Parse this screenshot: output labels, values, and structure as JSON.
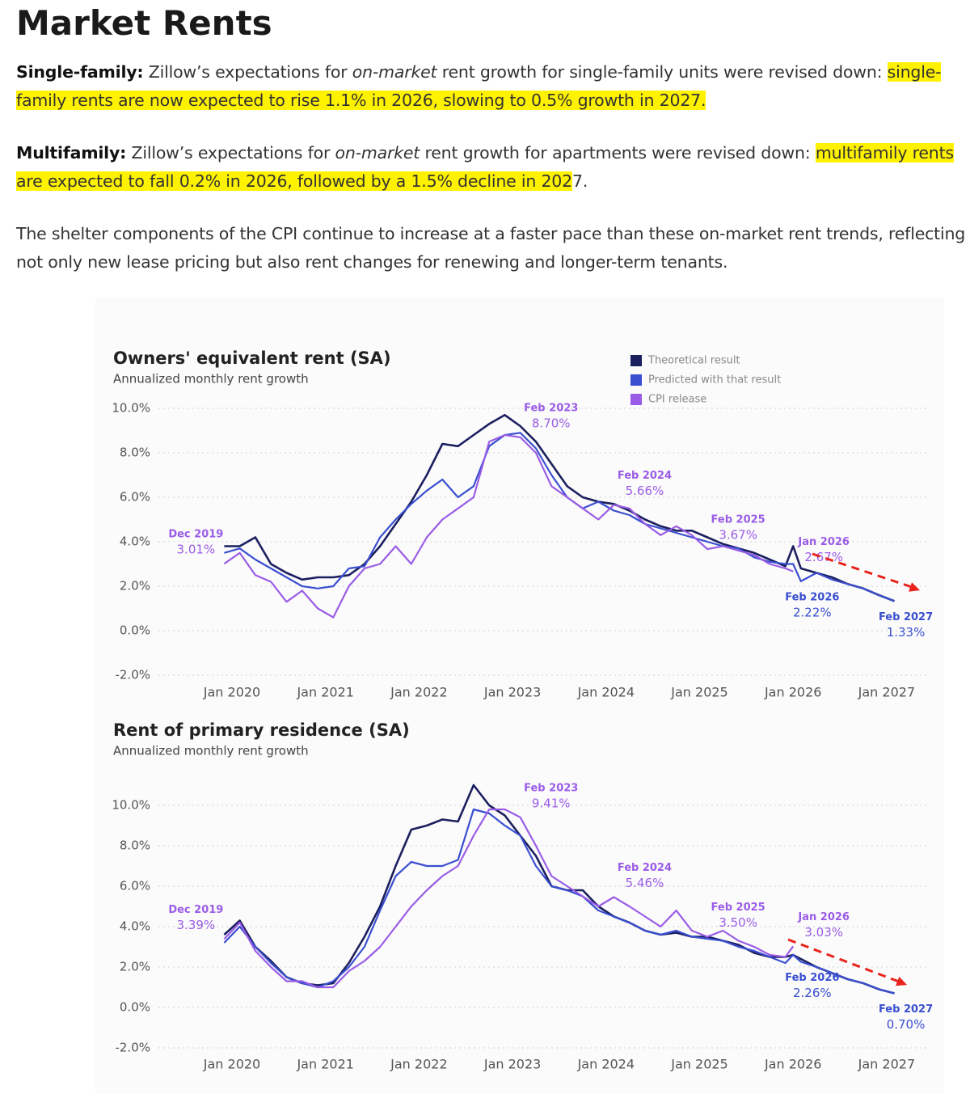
{
  "title": "Market Rents",
  "paragraphs": [
    [
      {
        "text": "Single-family:",
        "style": "bold"
      },
      {
        "text": " Zillow’s expectations for ",
        "style": "normal"
      },
      {
        "text": "on-market",
        "style": "italic"
      },
      {
        "text": " rent growth for single-family units were revised down: ",
        "style": "normal"
      },
      {
        "text": "single-family rents are now expected to rise 1.1% in 2026, slowing to 0.5% growth in 2027.",
        "style": "highlight"
      }
    ],
    [
      {
        "text": "Multifamily:",
        "style": "bold"
      },
      {
        "text": " Zillow’s expectations for ",
        "style": "normal"
      },
      {
        "text": "on-market",
        "style": "italic"
      },
      {
        "text": " rent growth for apartments were revised down: ",
        "style": "normal"
      },
      {
        "text": "multifamily rents are expected to fall 0.2% in 2026, followed by a 1.5% decline in 202",
        "style": "highlight"
      },
      {
        "text": "7.",
        "style": "normal"
      }
    ],
    [
      {
        "text": "The shelter components of the CPI continue to increase at a faster pace than these on-market rent trends, reflecting not only new lease pricing but also rent changes for renewing and longer-term tenants.",
        "style": "normal"
      }
    ]
  ],
  "chart_data": [
    {
      "type": "line",
      "title": "Owners' equivalent rent (SA)",
      "subtitle": "Annualized monthly rent growth",
      "x": [
        "2019-12",
        "2020-02",
        "2020-04",
        "2020-06",
        "2020-08",
        "2020-10",
        "2020-12",
        "2021-02",
        "2021-04",
        "2021-06",
        "2021-08",
        "2021-10",
        "2021-12",
        "2022-02",
        "2022-04",
        "2022-06",
        "2022-08",
        "2022-10",
        "2022-12",
        "2023-02",
        "2023-04",
        "2023-06",
        "2023-08",
        "2023-10",
        "2023-12",
        "2024-02",
        "2024-04",
        "2024-06",
        "2024-08",
        "2024-10",
        "2024-12",
        "2025-02",
        "2025-04",
        "2025-06",
        "2025-08",
        "2025-10",
        "2025-12",
        "2026-01",
        "2026-02",
        "2026-04",
        "2026-06",
        "2026-08",
        "2026-10",
        "2026-12",
        "2027-02"
      ],
      "series": [
        {
          "name": "Theoretical result",
          "color": "#1b1f5e",
          "values": [
            3.8,
            3.8,
            4.2,
            3.0,
            2.6,
            2.3,
            2.4,
            2.4,
            2.5,
            3.0,
            3.8,
            4.8,
            5.8,
            7.0,
            8.4,
            8.3,
            8.8,
            9.3,
            9.7,
            9.2,
            8.5,
            7.5,
            6.5,
            6.0,
            5.8,
            5.7,
            5.4,
            5.0,
            4.7,
            4.5,
            4.5,
            4.2,
            3.9,
            3.7,
            3.5,
            3.2,
            2.9,
            3.8,
            2.8,
            2.6,
            2.4,
            2.1,
            1.9,
            1.6,
            1.33
          ]
        },
        {
          "name": "Predicted with that result",
          "color": "#3a4fd0",
          "values": [
            3.5,
            3.7,
            3.2,
            2.8,
            2.4,
            2.0,
            1.9,
            2.0,
            2.8,
            2.9,
            4.2,
            5.0,
            5.7,
            6.3,
            6.8,
            6.0,
            6.5,
            8.3,
            8.8,
            8.9,
            8.2,
            7.0,
            6.0,
            5.5,
            5.8,
            5.4,
            5.2,
            4.8,
            4.6,
            4.4,
            4.2,
            4.0,
            3.8,
            3.7,
            3.3,
            3.1,
            3.0,
            3.0,
            2.22,
            2.6,
            2.3,
            2.1,
            1.9,
            1.6,
            1.33
          ]
        },
        {
          "name": "CPI release",
          "color": "#9a5ce6",
          "values": [
            3.01,
            3.5,
            2.5,
            2.2,
            1.3,
            1.8,
            1.0,
            0.6,
            2.0,
            2.8,
            3.0,
            3.8,
            3.0,
            4.2,
            5.0,
            5.5,
            6.0,
            8.5,
            8.8,
            8.7,
            8.0,
            6.5,
            6.0,
            5.5,
            5.0,
            5.66,
            5.5,
            4.8,
            4.3,
            4.7,
            4.3,
            3.67,
            3.8,
            3.6,
            3.4,
            3.0,
            2.8,
            2.67,
            null,
            null,
            null,
            null,
            null,
            null,
            null
          ]
        }
      ],
      "annotations": [
        {
          "label": "Dec 2019",
          "value_label": "3.01%",
          "x": "2019-12",
          "value": 3.01,
          "color": "#9a5ce6"
        },
        {
          "label": "Feb 2023",
          "value_label": "8.70%",
          "x": "2023-02",
          "value": 8.7,
          "color": "#9a5ce6"
        },
        {
          "label": "Feb 2024",
          "value_label": "5.66%",
          "x": "2024-02",
          "value": 5.66,
          "color": "#9a5ce6"
        },
        {
          "label": "Feb 2025",
          "value_label": "3.67%",
          "x": "2025-02",
          "value": 3.67,
          "color": "#9a5ce6"
        },
        {
          "label": "Jan 2026",
          "value_label": "2.67%",
          "x": "2026-01",
          "value": 2.67,
          "color": "#9a5ce6"
        },
        {
          "label": "Feb 2026",
          "value_label": "2.22%",
          "x": "2026-02",
          "value": 2.22,
          "color": "#3a4fd0"
        },
        {
          "label": "Feb 2027",
          "value_label": "1.33%",
          "x": "2027-02",
          "value": 1.33,
          "color": "#3a4fd0"
        }
      ],
      "ylim": [
        -2,
        10
      ],
      "yticks": [
        {
          "value": -2,
          "label": "-2.0%"
        },
        {
          "value": 0,
          "label": "0.0%"
        },
        {
          "value": 2,
          "label": "2.0%"
        },
        {
          "value": 4,
          "label": "4.0%"
        },
        {
          "value": 6,
          "label": "6.0%"
        },
        {
          "value": 8,
          "label": "8.0%"
        },
        {
          "value": 10,
          "label": "10.0%"
        }
      ],
      "xticks": [
        {
          "value": "2020-01",
          "label": "Jan 2020"
        },
        {
          "value": "2021-01",
          "label": "Jan 2021"
        },
        {
          "value": "2022-01",
          "label": "Jan 2022"
        },
        {
          "value": "2023-01",
          "label": "Jan 2023"
        },
        {
          "value": "2024-01",
          "label": "Jan 2024"
        },
        {
          "value": "2025-01",
          "label": "Jan 2025"
        },
        {
          "value": "2026-01",
          "label": "Jan 2026"
        },
        {
          "value": "2027-01",
          "label": "Jan 2027"
        }
      ],
      "grid": true,
      "legend": "top-right"
    },
    {
      "type": "line",
      "title": "Rent of primary residence (SA)",
      "subtitle": "Annualized monthly rent growth",
      "x": [
        "2019-12",
        "2020-02",
        "2020-04",
        "2020-06",
        "2020-08",
        "2020-10",
        "2020-12",
        "2021-02",
        "2021-04",
        "2021-06",
        "2021-08",
        "2021-10",
        "2021-12",
        "2022-02",
        "2022-04",
        "2022-06",
        "2022-08",
        "2022-10",
        "2022-12",
        "2023-02",
        "2023-04",
        "2023-06",
        "2023-08",
        "2023-10",
        "2023-12",
        "2024-02",
        "2024-04",
        "2024-06",
        "2024-08",
        "2024-10",
        "2024-12",
        "2025-02",
        "2025-04",
        "2025-06",
        "2025-08",
        "2025-10",
        "2025-12",
        "2026-01",
        "2026-02",
        "2026-04",
        "2026-06",
        "2026-08",
        "2026-10",
        "2026-12",
        "2027-02"
      ],
      "series": [
        {
          "name": "Theoretical result",
          "color": "#1b1f5e",
          "values": [
            3.6,
            4.3,
            3.0,
            2.3,
            1.5,
            1.2,
            1.1,
            1.2,
            2.2,
            3.5,
            5.0,
            7.0,
            8.8,
            9.0,
            9.3,
            9.2,
            11.0,
            10.0,
            9.5,
            8.5,
            7.5,
            6.0,
            5.8,
            5.8,
            5.0,
            4.5,
            4.2,
            3.8,
            3.6,
            3.7,
            3.5,
            3.5,
            3.3,
            3.1,
            2.7,
            2.5,
            2.5,
            2.6,
            2.4,
            2.0,
            1.7,
            1.4,
            1.2,
            0.9,
            0.7
          ]
        },
        {
          "name": "Predicted with that result",
          "color": "#3a4fd0",
          "values": [
            3.2,
            4.0,
            3.0,
            2.2,
            1.5,
            1.2,
            1.0,
            1.3,
            2.0,
            3.0,
            4.8,
            6.5,
            7.2,
            7.0,
            7.0,
            7.3,
            9.8,
            9.6,
            9.0,
            8.5,
            7.0,
            6.0,
            5.8,
            5.5,
            4.8,
            4.5,
            4.2,
            3.8,
            3.6,
            3.8,
            3.5,
            3.4,
            3.3,
            3.0,
            2.8,
            2.5,
            2.2,
            2.6,
            2.26,
            2.0,
            1.7,
            1.4,
            1.2,
            0.9,
            0.7
          ]
        },
        {
          "name": "CPI release",
          "color": "#9a5ce6",
          "values": [
            3.39,
            4.2,
            2.8,
            2.0,
            1.3,
            1.3,
            1.0,
            1.0,
            1.8,
            2.3,
            3.0,
            4.0,
            5.0,
            5.8,
            6.5,
            7.0,
            8.5,
            9.8,
            9.8,
            9.41,
            8.0,
            6.5,
            6.0,
            5.5,
            5.0,
            5.46,
            5.0,
            4.5,
            4.0,
            4.8,
            3.8,
            3.5,
            3.8,
            3.3,
            3.0,
            2.6,
            2.5,
            3.03,
            null,
            null,
            null,
            null,
            null,
            null,
            null
          ]
        }
      ],
      "annotations": [
        {
          "label": "Dec 2019",
          "value_label": "3.39%",
          "x": "2019-12",
          "value": 3.39,
          "color": "#9a5ce6"
        },
        {
          "label": "Feb 2023",
          "value_label": "9.41%",
          "x": "2023-02",
          "value": 9.41,
          "color": "#9a5ce6"
        },
        {
          "label": "Feb 2024",
          "value_label": "5.46%",
          "x": "2024-02",
          "value": 5.46,
          "color": "#9a5ce6"
        },
        {
          "label": "Feb 2025",
          "value_label": "3.50%",
          "x": "2025-02",
          "value": 3.5,
          "color": "#9a5ce6"
        },
        {
          "label": "Jan 2026",
          "value_label": "3.03%",
          "x": "2026-01",
          "value": 3.03,
          "color": "#9a5ce6"
        },
        {
          "label": "Feb 2026",
          "value_label": "2.26%",
          "x": "2026-02",
          "value": 2.26,
          "color": "#3a4fd0"
        },
        {
          "label": "Feb 2027",
          "value_label": "0.70%",
          "x": "2027-02",
          "value": 0.7,
          "color": "#3a4fd0"
        }
      ],
      "ylim": [
        -2,
        11
      ],
      "yticks": [
        {
          "value": -2,
          "label": "-2.0%"
        },
        {
          "value": 0,
          "label": "0.0%"
        },
        {
          "value": 2,
          "label": "2.0%"
        },
        {
          "value": 4,
          "label": "4.0%"
        },
        {
          "value": 6,
          "label": "6.0%"
        },
        {
          "value": 8,
          "label": "8.0%"
        },
        {
          "value": 10,
          "label": "10.0%"
        }
      ],
      "xticks": [
        {
          "value": "2020-01",
          "label": "Jan 2020"
        },
        {
          "value": "2021-01",
          "label": "Jan 2021"
        },
        {
          "value": "2022-01",
          "label": "Jan 2022"
        },
        {
          "value": "2023-01",
          "label": "Jan 2023"
        },
        {
          "value": "2024-01",
          "label": "Jan 2024"
        },
        {
          "value": "2025-01",
          "label": "Jan 2025"
        },
        {
          "value": "2026-01",
          "label": "Jan 2026"
        },
        {
          "value": "2027-01",
          "label": "Jan 2027"
        }
      ],
      "grid": true
    }
  ]
}
